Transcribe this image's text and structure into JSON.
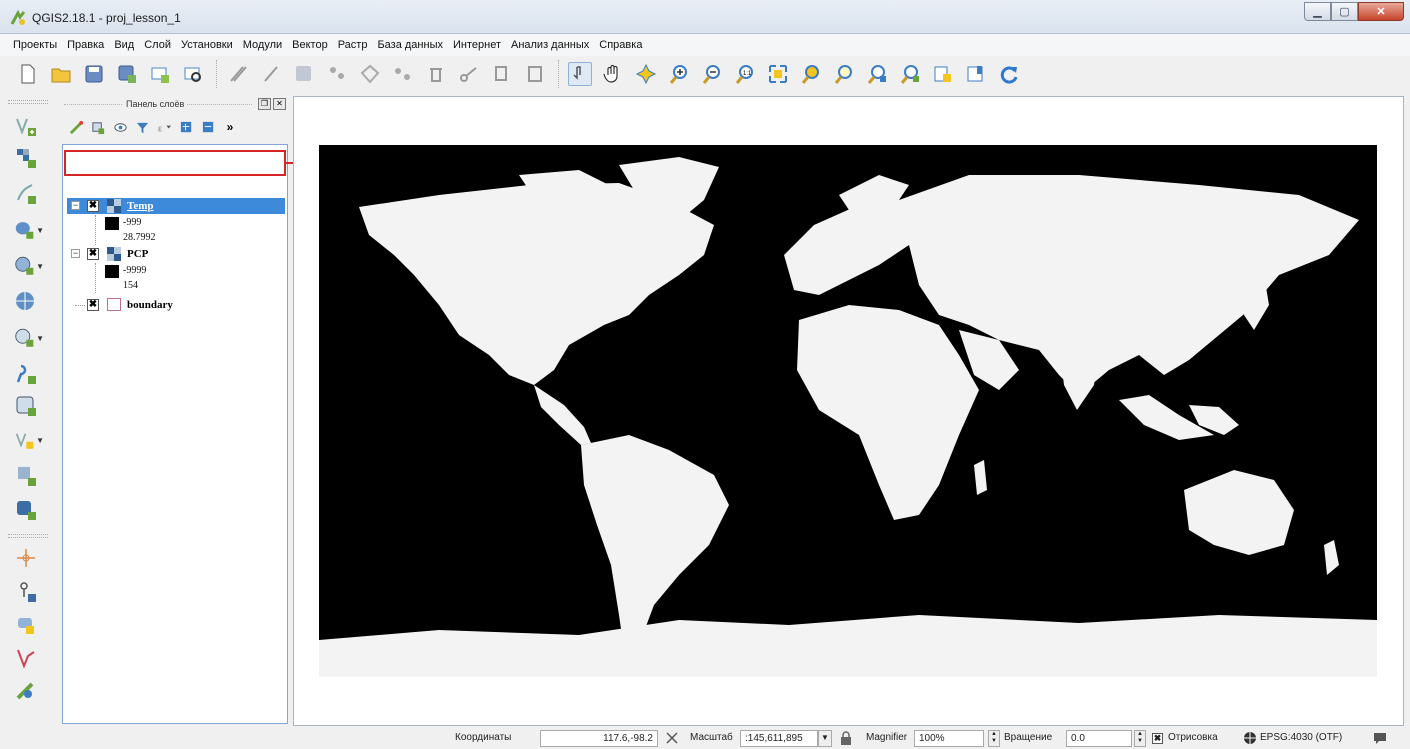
{
  "window": {
    "title": "QGIS2.18.1 - proj_lesson_1"
  },
  "menu": [
    "Проекты",
    "Правка",
    "Вид",
    "Слой",
    "Установки",
    "Модули",
    "Вектор",
    "Растр",
    "База данных",
    "Интернет",
    "Анализ данных",
    "Справка"
  ],
  "layers_panel": {
    "title": "Панель слоёв",
    "layers": [
      {
        "name": "Temp",
        "checked": true,
        "selected": true,
        "legend": [
          "-999",
          "28.7992"
        ]
      },
      {
        "name": "PCP",
        "checked": true,
        "selected": false,
        "legend": [
          "-9999",
          "154"
        ]
      },
      {
        "name": "boundary",
        "checked": true,
        "selected": false,
        "legend": []
      }
    ]
  },
  "status": {
    "coords_label": "Координаты",
    "coords_value": "117.6,-98.2",
    "scale_label": "Масштаб",
    "scale_value": ":145,611,895",
    "magnifier_label": "Magnifier",
    "magnifier_value": "100%",
    "rotation_label": "Вращение",
    "rotation_value": "0.0",
    "render_label": "Отрисовка",
    "crs_label": "EPSG:4030 (OTF)"
  },
  "colors": {
    "selection": "#3c8ad9",
    "highlight": "#d82424",
    "map_bg": "#000000",
    "land": "#f4f4f4"
  }
}
